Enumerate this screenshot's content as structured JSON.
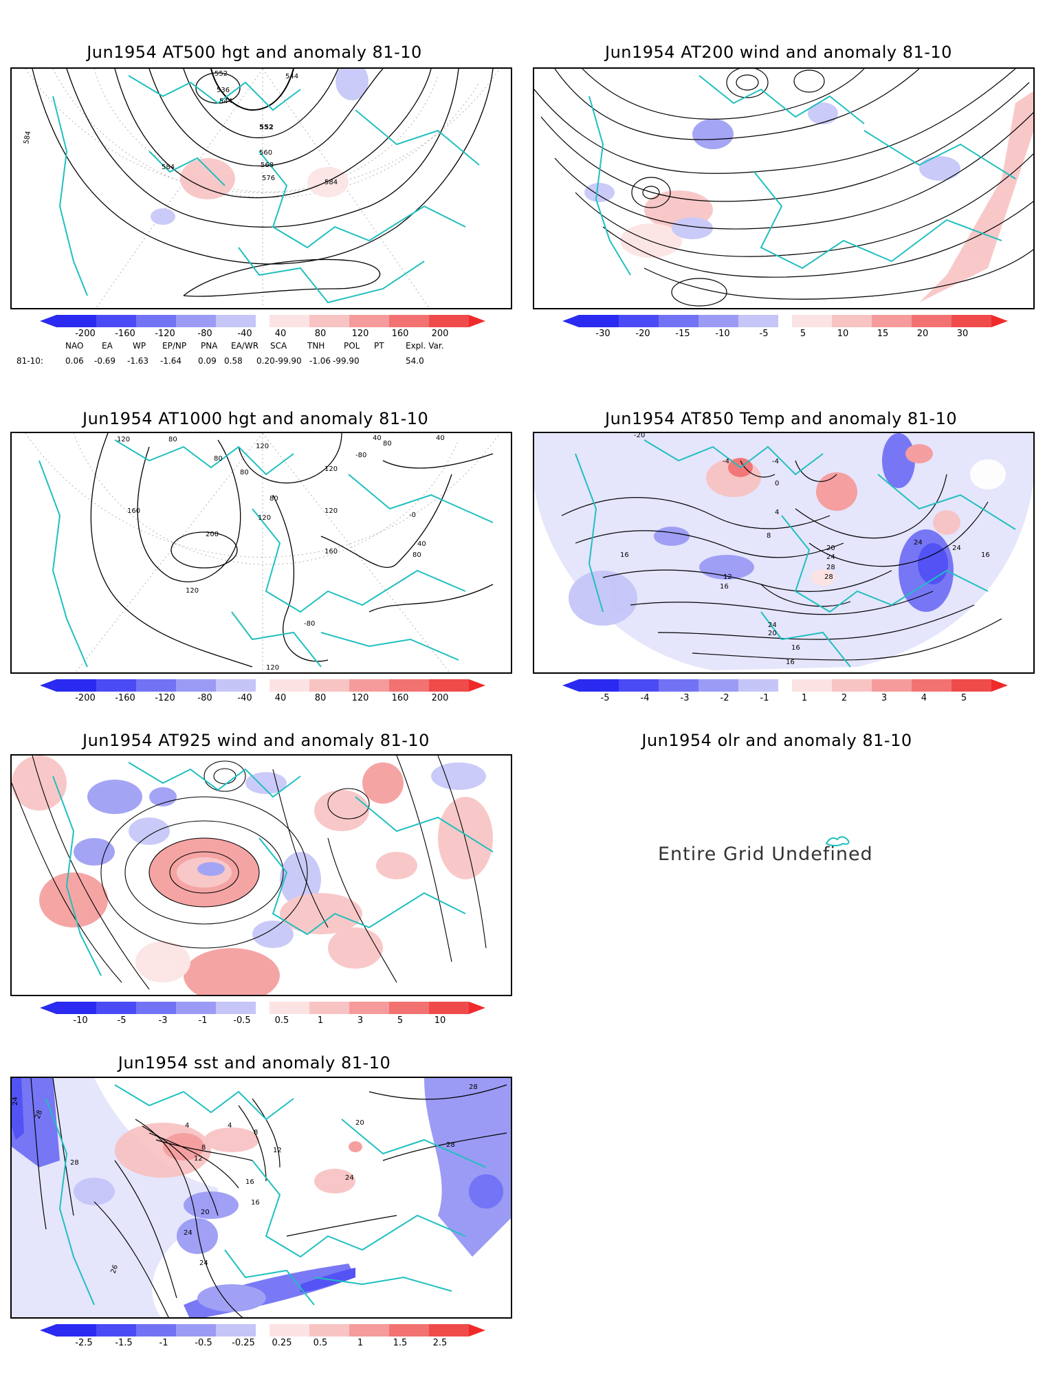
{
  "panels": {
    "p500": {
      "title": "Jun1954 AT500 hgt and anomaly 81-10",
      "contour_labels": [
        "552",
        "544",
        "536",
        "544",
        "552",
        "560",
        "568",
        "576",
        "584",
        "584",
        "584"
      ]
    },
    "p200": {
      "title": "Jun1954 AT200 wind and anomaly 81-10"
    },
    "p1000": {
      "title": "Jun1954 AT1000 hgt and anomaly 81-10",
      "contour_labels": [
        "120",
        "80",
        "80",
        "80",
        "120",
        "40",
        "80",
        "40",
        "160",
        "200",
        "120",
        "-80",
        "120",
        "80",
        "40",
        "120",
        "-0",
        "160",
        "80",
        "120",
        "-80",
        "120"
      ]
    },
    "p850": {
      "title": "Jun1954 AT850 Temp and anomaly 81-10",
      "contour_labels": [
        "-20",
        "-4",
        "-4",
        "0",
        "4",
        "8",
        "16",
        "12",
        "16",
        "20",
        "24",
        "28",
        "24",
        "28",
        "24",
        "20",
        "16",
        "16",
        "24",
        "16"
      ]
    },
    "p925": {
      "title": "Jun1954 AT925 wind and anomaly 81-10"
    },
    "polr": {
      "title": "Jun1954 olr and anomaly 81-10",
      "message": "Entire Grid Undefined"
    },
    "psst": {
      "title": "Jun1954 sst and anomaly 81-10",
      "contour_labels": [
        "24",
        "28",
        "28",
        "28",
        "28",
        "4",
        "4",
        "8",
        "8",
        "12",
        "12",
        "16",
        "16",
        "20",
        "20",
        "24",
        "24",
        "26",
        "24"
      ]
    }
  },
  "colorbars": {
    "hgt500": [
      "-200",
      "-160",
      "-120",
      "-80",
      "-40",
      "40",
      "80",
      "120",
      "160",
      "200"
    ],
    "wind200": [
      "-30",
      "-20",
      "-15",
      "-10",
      "-5",
      "5",
      "10",
      "15",
      "20",
      "30"
    ],
    "hgt1000": [
      "-200",
      "-160",
      "-120",
      "-80",
      "-40",
      "40",
      "80",
      "120",
      "160",
      "200"
    ],
    "temp850": [
      "-5",
      "-4",
      "-3",
      "-2",
      "-1",
      "1",
      "2",
      "3",
      "4",
      "5"
    ],
    "wind925": [
      "-10",
      "-5",
      "-3",
      "-1",
      "-0.5",
      "0.5",
      "1",
      "3",
      "5",
      "10"
    ],
    "sst": [
      "-2.5",
      "-1.5",
      "-1",
      "-0.5",
      "-0.25",
      "0.25",
      "0.5",
      "1",
      "1.5",
      "2.5"
    ]
  },
  "colors": {
    "coast": "#1fbfbf",
    "contour": "#000000",
    "blues": [
      "#2a2af0",
      "#4b4bf5",
      "#7272f5",
      "#9b9bf5",
      "#c5c5f8",
      "#e5e5fc"
    ],
    "reds": [
      "#fce3e3",
      "#f8c3c3",
      "#f59b9b",
      "#f27272",
      "#ef4b4b",
      "#f02a2a"
    ]
  },
  "teleconnections": {
    "headers": [
      "NAO",
      "EA",
      "WP",
      "EP/NP",
      "PNA",
      "EA/WR",
      "SCA",
      "TNH",
      "POL",
      "PT",
      "Expl. Var."
    ],
    "row_label": "81-10:",
    "values": [
      "0.06",
      "-0.69",
      "-1.63",
      "-1.64",
      "0.09",
      "0.58",
      "0.20",
      "-99.90",
      "-1.06",
      "-99.90",
      "54.0"
    ]
  }
}
